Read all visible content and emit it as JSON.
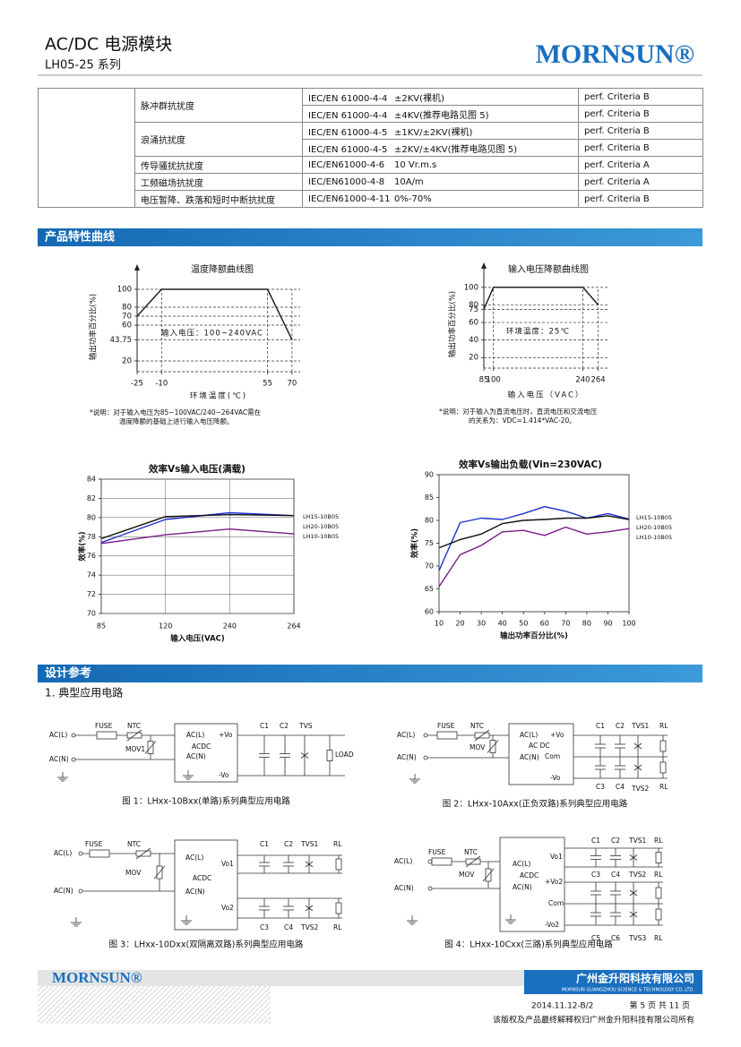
{
  "header": {
    "title": "AC/DC 电源模块",
    "subtitle": "LH05-25 系列",
    "logo": "MORNSUN®"
  },
  "table": {
    "groups": [
      {
        "item": "脉冲群抗扰度",
        "rows": [
          [
            "IEC/EN 61000-4-4",
            "±2KV(裸机)",
            "perf. Criteria B"
          ],
          [
            "IEC/EN 61000-4-4",
            "±4KV(推荐电路见图 5)",
            "perf. Criteria B"
          ]
        ]
      },
      {
        "item": "浪涌抗扰度",
        "rows": [
          [
            "IEC/EN 61000-4-5",
            "±1KV/±2KV(裸机)",
            "perf. Criteria B"
          ],
          [
            "IEC/EN 61000-4-5",
            "±2KV/±4KV(推荐电路见图 5)",
            "perf. Criteria B"
          ]
        ]
      },
      {
        "item": "传导骚扰抗扰度",
        "rows": [
          [
            "IEC/EN61000-4-6",
            "10 Vr.m.s",
            "perf. Criteria A"
          ]
        ]
      },
      {
        "item": "工频磁场抗扰度",
        "rows": [
          [
            "IEC/EN61000-4-8",
            "10A/m",
            "perf. Criteria A"
          ]
        ]
      },
      {
        "item": "电压暂降、跌落和短时中断抗扰度",
        "rows": [
          [
            "IEC/EN61000-4-11",
            "0%-70%",
            "perf. Criteria B"
          ]
        ]
      }
    ]
  },
  "sections": [
    "产品特性曲线",
    "设计参考"
  ],
  "subsection": "1. 典型应用电路",
  "chart_data": [
    {
      "type": "line",
      "title": "温度降额曲线图",
      "x_label": "环境温度(℃)",
      "y_label": "输出功率百分比(%)",
      "annotation": "输入电压：100~240VAC",
      "note": [
        "*说明：对于输入电压为85~100VAC/240~264VAC需在",
        "温度降额的基础上进行输入电压降额。"
      ],
      "x": [
        -25,
        -10,
        55,
        70
      ],
      "values": [
        70,
        100,
        100,
        43.75
      ],
      "color": "#222222",
      "xlim": [
        -25,
        75
      ],
      "ylim": [
        8,
        108
      ],
      "xticks": [
        -25,
        -10,
        55,
        70
      ],
      "yticks": [
        20,
        43.75,
        60,
        70,
        80,
        100
      ],
      "grid": "dashed"
    },
    {
      "type": "line",
      "title": "输入电压降额曲线图",
      "x_label": "输入电压（VAC）",
      "y_label": "输出功率百分比(%)",
      "annotation": "环境温度：25℃",
      "note": [
        "*说明：对于输入为直流电压时，直流电压和交流电压",
        "的关系为：VDC=1.414*VAC-20。"
      ],
      "x": [
        85,
        100,
        240,
        264
      ],
      "values": [
        75,
        100,
        100,
        80
      ],
      "color": "#222222",
      "xlim": [
        85,
        280
      ],
      "ylim": [
        8,
        108
      ],
      "xticks": [
        85,
        100,
        240,
        264
      ],
      "yticks": [
        20,
        40,
        60,
        75,
        80,
        100
      ],
      "grid": "dashed"
    },
    {
      "type": "line",
      "title": "效率Vs输入电压(满载)",
      "x_label": "输入电压(VAC)",
      "y_label": "效率(%)",
      "categories": [
        "85",
        "120",
        "240",
        "264"
      ],
      "series": [
        {
          "name": "LH15-10B05",
          "color": "#1f2fd0",
          "values": [
            77.4,
            79.8,
            80.5,
            80.2
          ]
        },
        {
          "name": "LH20-10B05",
          "color": "#111111",
          "values": [
            77.8,
            80.1,
            80.3,
            80.2
          ]
        },
        {
          "name": "LH10-10B05",
          "color": "#7b1a8a",
          "values": [
            77.3,
            78.2,
            78.8,
            78.3
          ]
        }
      ],
      "ylim": [
        70,
        84
      ],
      "yticks": [
        70,
        72,
        74,
        76,
        78,
        80,
        82,
        84
      ],
      "grid": true
    },
    {
      "type": "line",
      "title": "效率Vs输出负载(Vin=230VAC)",
      "x_label": "输出功率百分比(%)",
      "y_label": "效率(%)",
      "x": [
        10,
        20,
        30,
        40,
        50,
        60,
        70,
        80,
        90,
        100
      ],
      "series": [
        {
          "name": "LH15-10B05",
          "color": "#1f2fd0",
          "values": [
            69,
            79.5,
            80.5,
            80.2,
            81.5,
            83,
            82,
            80.5,
            81.5,
            80.3
          ]
        },
        {
          "name": "LH20-10B05",
          "color": "#111111",
          "values": [
            74,
            75.8,
            77,
            79.3,
            80,
            80.2,
            80.5,
            80.5,
            81,
            80.2
          ]
        },
        {
          "name": "LH10-10B05",
          "color": "#7b1a8a",
          "values": [
            65.5,
            72.5,
            74.5,
            77.5,
            77.8,
            76.7,
            78.5,
            77,
            77.5,
            78.2
          ]
        }
      ],
      "xlim": [
        10,
        100
      ],
      "ylim": [
        60,
        90
      ],
      "xticks": [
        10,
        20,
        30,
        40,
        50,
        60,
        70,
        80,
        90,
        100
      ],
      "yticks": [
        60,
        65,
        70,
        75,
        80,
        85,
        90
      ],
      "grid": false
    }
  ],
  "circuits": [
    {
      "caption": "图 1：LHxx-10Bxx(单路)系列典型应用电路",
      "labels": [
        "AC(L)",
        "AC(N)",
        "FUSE",
        "NTC",
        "MOV1",
        "AC(L)",
        "AC(N)",
        "+Vo",
        "-Vo",
        "ACDC",
        "C1",
        "C2",
        "TVS",
        "LOAD"
      ]
    },
    {
      "caption": "图 2：LHxx-10Axx(正负双路)系列典型应用电路",
      "labels": [
        "AC(L)",
        "AC(N)",
        "FUSE",
        "NTC",
        "MOV",
        "AC(L)",
        "AC(N)",
        "+Vo",
        "Com",
        "-Vo",
        "AC DC",
        "C1",
        "C2",
        "TVS1",
        "RL",
        "C3",
        "C4",
        "TVS2",
        "RL"
      ]
    },
    {
      "caption": "图 3：LHxx-10Dxx(双隔离双路)系列典型应用电路",
      "labels": [
        "AC(L)",
        "AC(N)",
        "FUSE",
        "NTC",
        "MOV",
        "AC(L)",
        "AC(N)",
        "ACDC",
        "Vo1",
        "Vo2",
        "C1",
        "C2",
        "TVS1",
        "RL",
        "C3",
        "C4",
        "TVS2",
        "RL"
      ]
    },
    {
      "caption": "图 4：LHxx-10Cxx(三路)系列典型应用电路",
      "labels": [
        "AC(L)",
        "AC(N)",
        "FUSE",
        "NTC",
        "MOV",
        "AC(L)",
        "AC(N)",
        "ACDC",
        "Vo1",
        "+Vo2",
        "Com",
        "-Vo2",
        "C1",
        "C2",
        "TVS1",
        "RL",
        "C3",
        "C4",
        "TVS2",
        "RL",
        "C5",
        "C6",
        "TVS3",
        "RL"
      ]
    }
  ],
  "footer": {
    "logo": "MORNSUN®",
    "company": "广州金升阳科技有限公司",
    "company_en": "MORNSUN GUANGZHOU SCIENCE & TECHNOLOGY CO.,LTD.",
    "date": "2014.11.12-B/2",
    "page": "第 5 页 共 11 页",
    "copyright": "该版权及产品最终解释权归广州金升阳科技有限公司所有"
  }
}
